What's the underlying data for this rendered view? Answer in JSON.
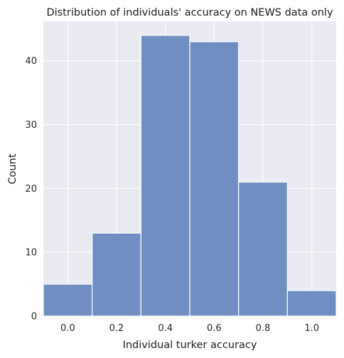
{
  "chart_data": {
    "type": "bar",
    "title": "Distribution of individuals' accuracy on NEWS data only",
    "xlabel": "Individual turker accuracy",
    "ylabel": "Count",
    "bins": [
      {
        "start": -0.1,
        "end": 0.1,
        "count": 5
      },
      {
        "start": 0.1,
        "end": 0.3,
        "count": 13
      },
      {
        "start": 0.3,
        "end": 0.5,
        "count": 44
      },
      {
        "start": 0.5,
        "end": 0.7,
        "count": 43
      },
      {
        "start": 0.7,
        "end": 0.9,
        "count": 21
      },
      {
        "start": 0.9,
        "end": 1.1,
        "count": 4
      }
    ],
    "xlim": [
      -0.1,
      1.1
    ],
    "ylim": [
      0,
      46.2
    ],
    "xticks": [
      0.0,
      0.2,
      0.4,
      0.6,
      0.8,
      1.0
    ],
    "xtick_labels": [
      "0.0",
      "0.2",
      "0.4",
      "0.6",
      "0.8",
      "1.0"
    ],
    "yticks": [
      0,
      10,
      20,
      30,
      40
    ],
    "ytick_labels": [
      "0",
      "10",
      "20",
      "30",
      "40"
    ],
    "grid": true,
    "colors": {
      "bar": "#6f8fc2",
      "bar_edge": "#ffffff",
      "plot_background": "#eaeaf2",
      "grid": "#ffffff"
    }
  }
}
